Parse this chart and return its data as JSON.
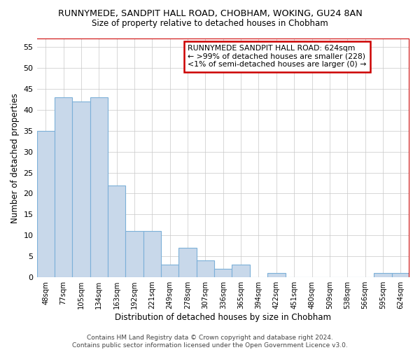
{
  "title1": "RUNNYMEDE, SANDPIT HALL ROAD, CHOBHAM, WOKING, GU24 8AN",
  "title2": "Size of property relative to detached houses in Chobham",
  "xlabel": "Distribution of detached houses by size in Chobham",
  "ylabel": "Number of detached properties",
  "categories": [
    "48sqm",
    "77sqm",
    "105sqm",
    "134sqm",
    "163sqm",
    "192sqm",
    "221sqm",
    "249sqm",
    "278sqm",
    "307sqm",
    "336sqm",
    "365sqm",
    "394sqm",
    "422sqm",
    "451sqm",
    "480sqm",
    "509sqm",
    "538sqm",
    "566sqm",
    "595sqm",
    "624sqm"
  ],
  "values": [
    35,
    43,
    42,
    43,
    22,
    11,
    11,
    3,
    7,
    4,
    2,
    3,
    0,
    1,
    0,
    0,
    0,
    0,
    0,
    1,
    1
  ],
  "bar_color": "#c8d8ea",
  "bar_edge_color": "#7cb0d8",
  "annotation_text": "RUNNYMEDE SANDPIT HALL ROAD: 624sqm\n← >99% of detached houses are smaller (228)\n<1% of semi-detached houses are larger (0) →",
  "annotation_box_edge": "#cc0000",
  "red_line_color": "#cc0000",
  "ylim": [
    0,
    57
  ],
  "yticks": [
    0,
    5,
    10,
    15,
    20,
    25,
    30,
    35,
    40,
    45,
    50,
    55
  ],
  "footer": "Contains HM Land Registry data © Crown copyright and database right 2024.\nContains public sector information licensed under the Open Government Licence v3.0.",
  "background_color": "#ffffff",
  "grid_color": "#c8c8c8"
}
